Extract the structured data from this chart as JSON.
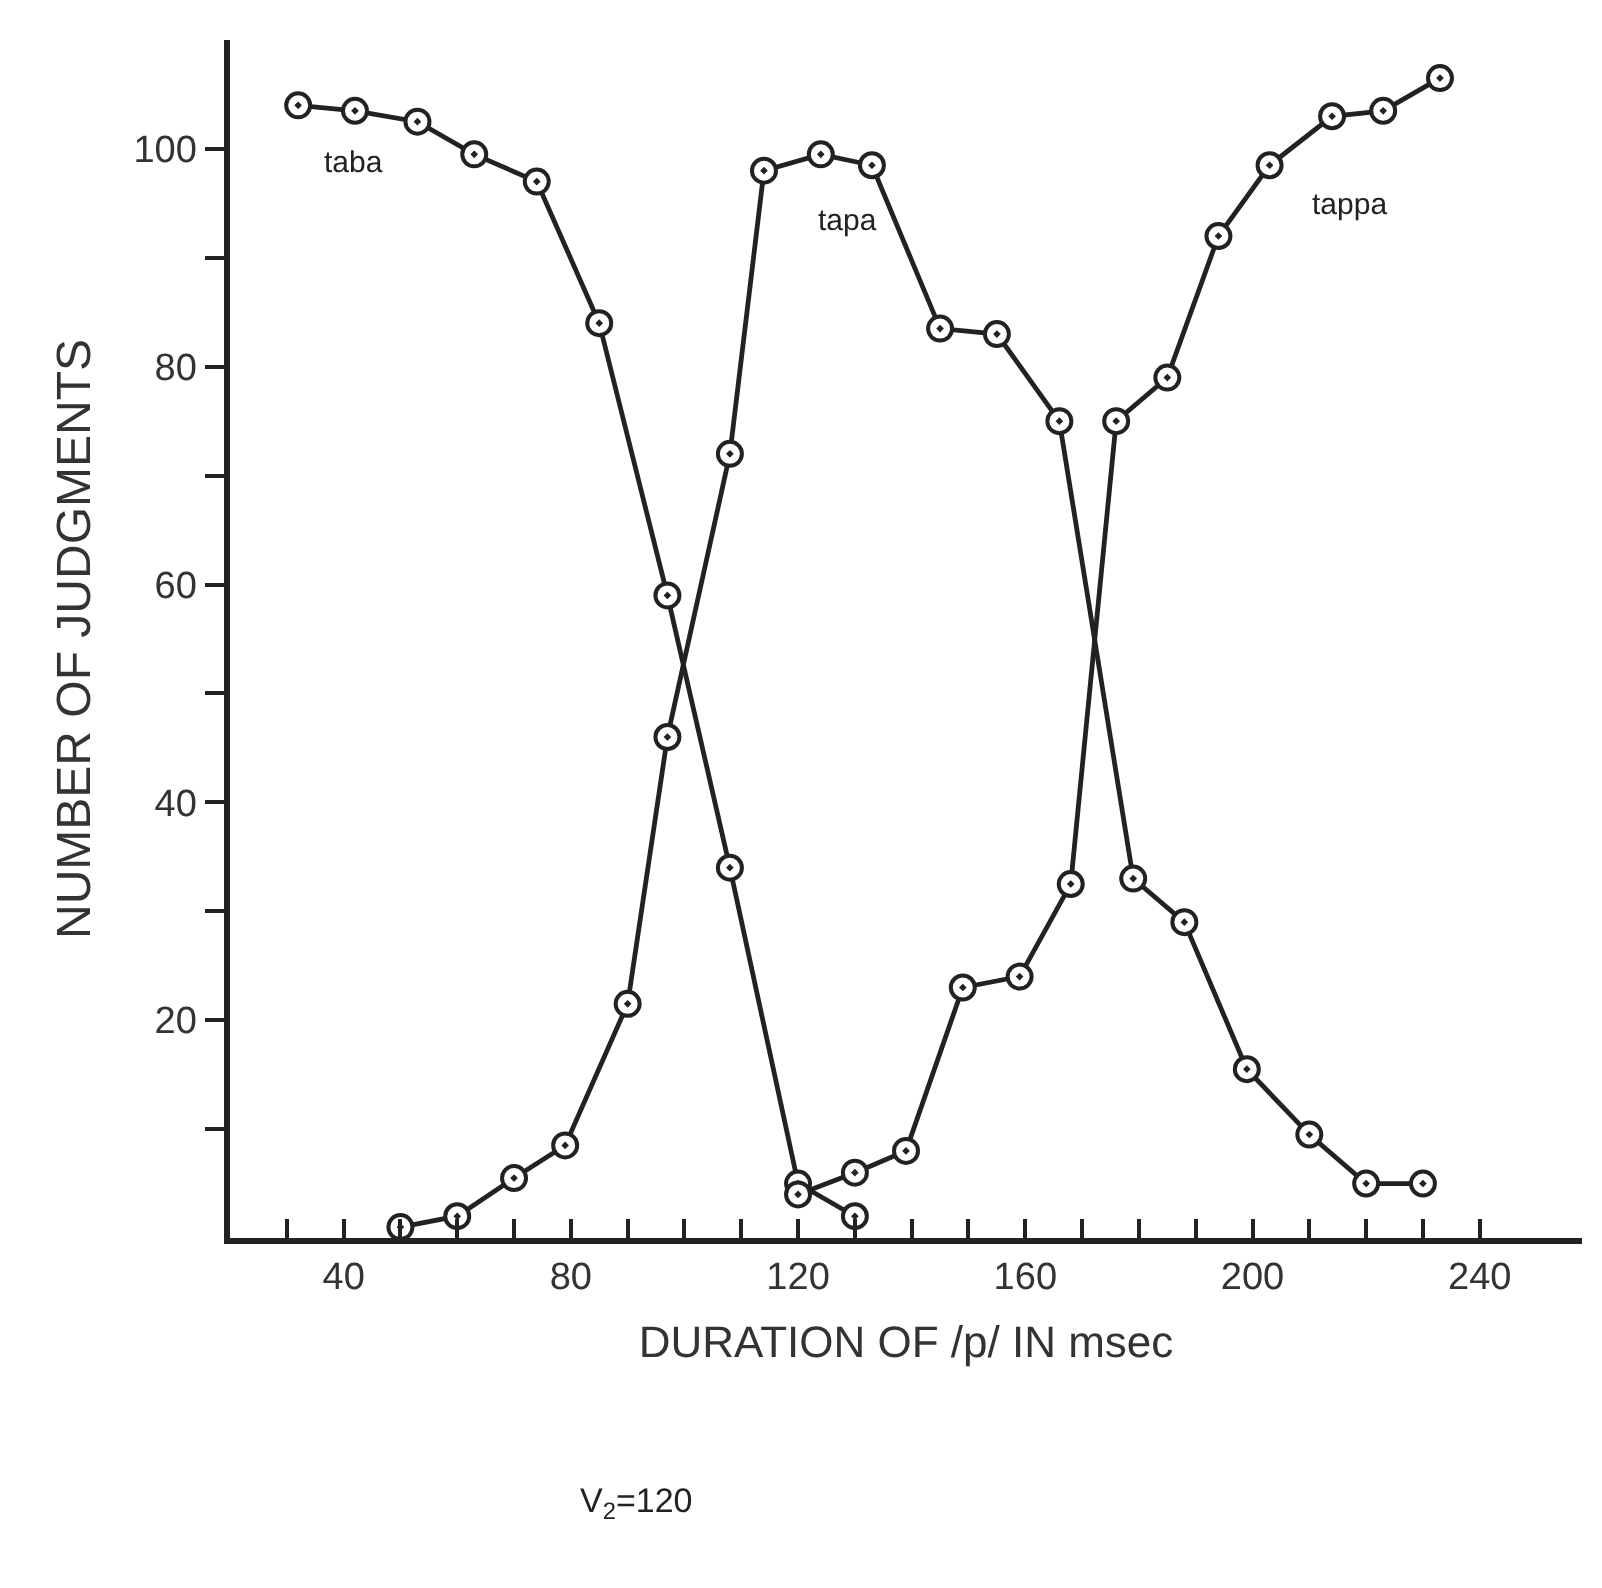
{
  "chart_data": {
    "type": "line",
    "xlabel": "DURATION OF /p/ IN msec",
    "ylabel": "NUMBER OF JUDGMENTS",
    "xlim": [
      20,
      258
    ],
    "ylim": [
      0,
      110
    ],
    "xticks": [
      {
        "value": 30,
        "label": null
      },
      40,
      {
        "value": 50,
        "label": null
      },
      {
        "value": 60,
        "label": null
      },
      {
        "value": 70,
        "label": null
      },
      80,
      {
        "value": 90,
        "label": null
      },
      {
        "value": 100,
        "label": null
      },
      {
        "value": 110,
        "label": null
      },
      120,
      {
        "value": 130,
        "label": null
      },
      {
        "value": 140,
        "label": null
      },
      {
        "value": 150,
        "label": null
      },
      160,
      {
        "value": 170,
        "label": null
      },
      {
        "value": 180,
        "label": null
      },
      {
        "value": 190,
        "label": null
      },
      200,
      {
        "value": 210,
        "label": null
      },
      {
        "value": 220,
        "label": null
      },
      {
        "value": 230,
        "label": null
      },
      240
    ],
    "yticks": [
      {
        "value": 10,
        "label": null
      },
      20,
      {
        "value": 30,
        "label": null
      },
      40,
      {
        "value": 50,
        "label": null
      },
      60,
      {
        "value": 70,
        "label": null
      },
      80,
      {
        "value": 90,
        "label": null
      },
      100
    ],
    "marker": "circle",
    "legend": false,
    "series": [
      {
        "name": "taba",
        "color": "#222222",
        "x": [
          32,
          42,
          53,
          63,
          74,
          85,
          97,
          108,
          120,
          130
        ],
        "values": [
          104,
          103.5,
          102.5,
          99.5,
          97,
          84,
          59,
          34,
          5,
          2
        ]
      },
      {
        "name": "tapa",
        "color": "#222222",
        "x": [
          50,
          60,
          70,
          79,
          90,
          97,
          108,
          114,
          124,
          133,
          145,
          155,
          166,
          179,
          188,
          199,
          210,
          220,
          230
        ],
        "values": [
          1,
          2,
          5.5,
          8.5,
          21.5,
          46,
          72,
          98,
          99.5,
          98.5,
          83.5,
          83,
          75,
          33,
          29,
          15.5,
          9.5,
          5,
          5
        ]
      },
      {
        "name": "tappa",
        "color": "#222222",
        "x": [
          120,
          130,
          139,
          149,
          159,
          168,
          176,
          185,
          194,
          203,
          214,
          223,
          233
        ],
        "values": [
          4,
          6,
          8,
          23,
          24,
          32.5,
          75,
          79,
          92,
          98.5,
          103,
          103.5,
          106.5
        ]
      }
    ],
    "annotations": [
      "V$_{2}$=120"
    ]
  }
}
